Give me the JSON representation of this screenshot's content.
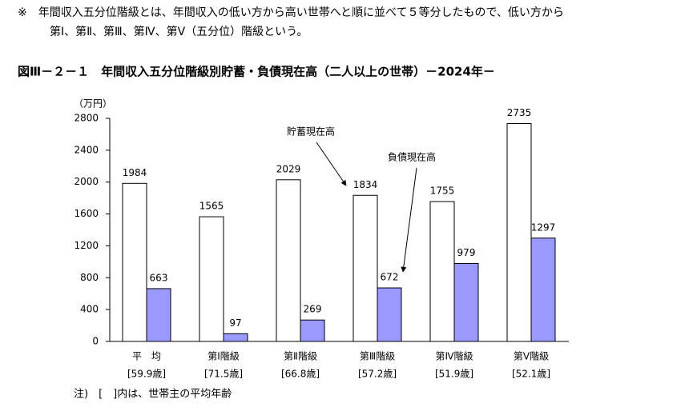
{
  "note": [
    "※　年間収入五分位階級とは、年間収入の低い方から高い世帯へと順に並べて５等分したもので、低い方から",
    "第Ⅰ、第Ⅱ、第Ⅲ、第Ⅳ、第Ⅴ（五分位）階級という。"
  ],
  "chart_data": {
    "type": "bar",
    "title": "図Ⅲ－２－１　年間収入五分位階級別貯蓄・負債現在高（二人以上の世帯）－2024年－",
    "y_unit": "（万円）",
    "categories": [
      "平　均",
      "第Ⅰ階級",
      "第Ⅱ階級",
      "第Ⅲ階級",
      "第Ⅳ階級",
      "第Ⅴ階級"
    ],
    "category_notes": [
      "[59.9歳]",
      "[71.5歳]",
      "[66.8歳]",
      "[57.2歳]",
      "[51.9歳]",
      "[52.1歳]"
    ],
    "series": [
      {
        "name": "貯蓄現在高",
        "color": "#ffffff",
        "values": [
          1984,
          1565,
          2029,
          1834,
          1755,
          2735
        ]
      },
      {
        "name": "負債現在高",
        "color": "#9999ff",
        "values": [
          663,
          97,
          269,
          672,
          979,
          1297
        ]
      }
    ],
    "ylim": [
      0,
      2800
    ],
    "yticks": [
      0,
      400,
      800,
      1200,
      1600,
      2000,
      2400,
      2800
    ],
    "grid": false,
    "footnote": "注)　[　]内は、世帯主の平均年齢"
  }
}
